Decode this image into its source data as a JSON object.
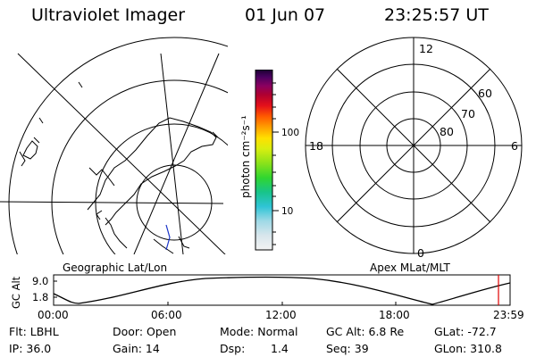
{
  "header": {
    "instrument": "Ultraviolet Imager",
    "date": "01 Jun 07",
    "time": "23:25:57 UT"
  },
  "colorbar": {
    "units": "photon cm⁻²s⁻¹",
    "tick_upper": "100",
    "tick_lower": "10"
  },
  "polar_plot": {
    "mlt_top": "12",
    "mlt_left": "18",
    "mlt_right": "6",
    "mlt_bottom": "0",
    "lat_60": "60",
    "lat_70": "70",
    "lat_80": "80"
  },
  "labels": {
    "geographic": "Geographic Lat/Lon",
    "apex": "Apex  MLat/MLT"
  },
  "altitude_plot": {
    "ylabel": "GC Alt",
    "y_top": "9.0",
    "y_bottom": "1.8",
    "x_ticks": [
      "00:00",
      "06:00",
      "12:00",
      "18:00",
      "23:59"
    ],
    "current_time_marker": "23:25:57"
  },
  "info": {
    "filter": "Flt: LBHL",
    "ip": "IP: 36.0",
    "door": "Door: Open",
    "gain": "Gain: 14",
    "mode": "Mode: Normal",
    "dsp_label": "Dsp:",
    "dsp_value": "1.4",
    "gc_alt": "GC Alt: 6.8 Re",
    "seq": "Seq: 39",
    "glat": "GLat: -72.7",
    "glon": "GLon: 310.8"
  },
  "colors": {
    "marker": "#e00000",
    "overlay_track": "#1a35c8"
  }
}
